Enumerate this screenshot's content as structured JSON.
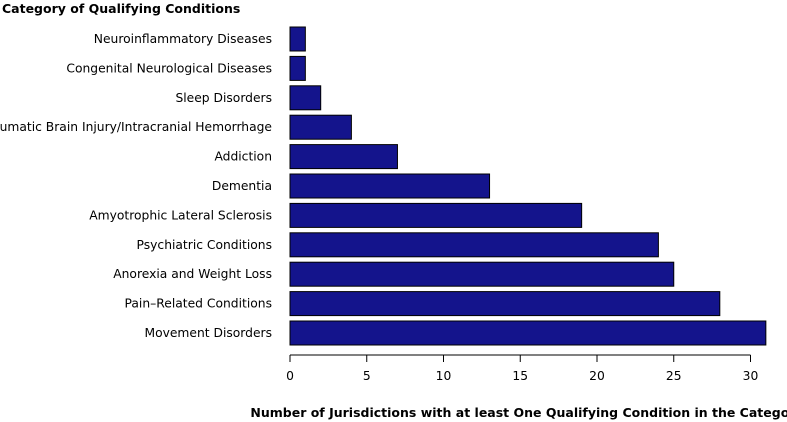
{
  "chart_data": {
    "type": "bar",
    "orientation": "horizontal",
    "title": "Category of Qualifying Conditions",
    "xlabel": "Number of Jurisdictions with at least One Qualifying Condition in the Category",
    "ylabel": "",
    "categories": [
      "Neuroinflammatory Diseases",
      "Congenital Neurological Diseases",
      "Sleep Disorders",
      "Traumatic Brain Injury/Intracranial Hemorrhage",
      "Addiction",
      "Dementia",
      "Amyotrophic Lateral Sclerosis",
      "Psychiatric Conditions",
      "Anorexia and Weight Loss",
      "Pain–Related Conditions",
      "Movement Disorders"
    ],
    "values": [
      1,
      1,
      2,
      4,
      7,
      13,
      19,
      24,
      25,
      28,
      31
    ],
    "xlim": [
      0,
      31
    ],
    "xticks": [
      0,
      5,
      10,
      15,
      20,
      25,
      30
    ],
    "grid": false,
    "legend": "none",
    "colors": {
      "bar_fill": "#14148c",
      "bar_stroke": "#000000"
    }
  }
}
